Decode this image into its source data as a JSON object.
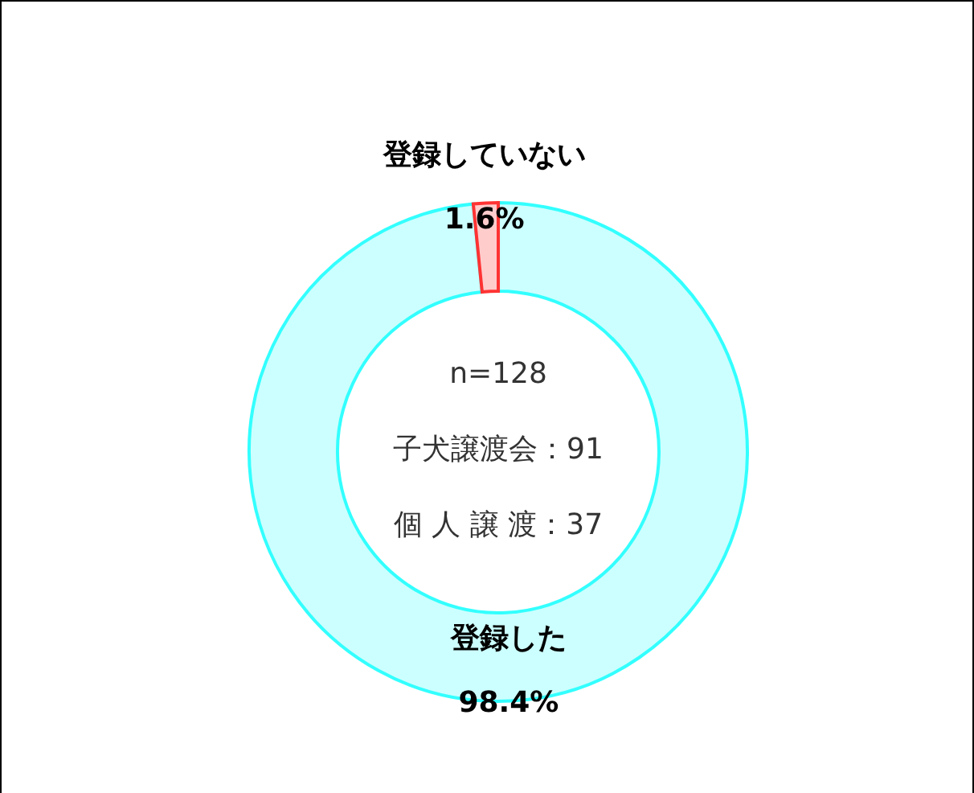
{
  "chart_data": {
    "type": "donut",
    "categories": [
      "登録した",
      "登録していない"
    ],
    "values": [
      98.4,
      1.6
    ],
    "value_labels": [
      "98.4%",
      "1.6%"
    ],
    "colors": [
      "#ccffff",
      "#ffcccc"
    ],
    "annotations": [
      "n=128",
      "子犬譲渡会：91",
      "個 人 譲 渡：37"
    ]
  }
}
